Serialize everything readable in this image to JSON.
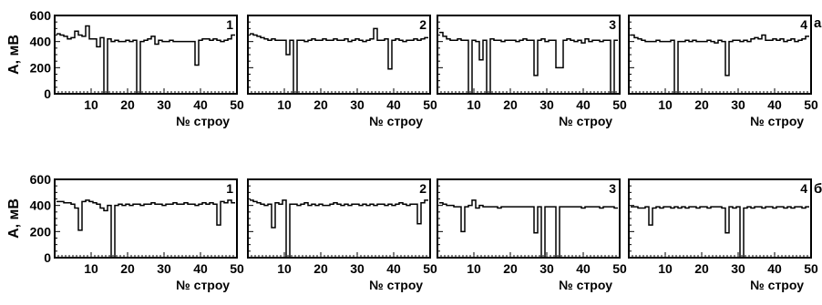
{
  "row_labels": [
    "а",
    "б"
  ],
  "chart_data": [
    {
      "type": "line",
      "panel": "1",
      "row": "а",
      "xlabel": "№ строу",
      "ylabel": "А, мВ",
      "xlim": [
        0,
        50
      ],
      "ylim": [
        0,
        600
      ],
      "x": [
        1,
        2,
        3,
        4,
        5,
        6,
        7,
        8,
        9,
        10,
        11,
        12,
        13,
        14,
        15,
        16,
        17,
        18,
        19,
        20,
        21,
        22,
        23,
        24,
        25,
        26,
        27,
        28,
        29,
        30,
        31,
        32,
        33,
        34,
        35,
        36,
        37,
        38,
        39,
        40,
        41,
        42,
        43,
        44,
        45,
        46,
        47,
        48,
        49
      ],
      "y": [
        460,
        450,
        440,
        420,
        430,
        480,
        450,
        440,
        520,
        420,
        420,
        360,
        430,
        0,
        420,
        400,
        410,
        400,
        400,
        410,
        400,
        410,
        0,
        400,
        410,
        420,
        440,
        380,
        410,
        400,
        400,
        410,
        400,
        400,
        400,
        400,
        400,
        400,
        220,
        410,
        420,
        420,
        410,
        420,
        410,
        400,
        410,
        420,
        450
      ]
    },
    {
      "type": "line",
      "panel": "2",
      "row": "а",
      "xlabel": "№ строу",
      "ylabel": "",
      "xlim": [
        0,
        50
      ],
      "ylim": [
        0,
        600
      ],
      "x": [
        1,
        2,
        3,
        4,
        5,
        6,
        7,
        8,
        9,
        10,
        11,
        12,
        13,
        14,
        15,
        16,
        17,
        18,
        19,
        20,
        21,
        22,
        23,
        24,
        25,
        26,
        27,
        28,
        29,
        30,
        31,
        32,
        33,
        34,
        35,
        36,
        37,
        38,
        39,
        40,
        41,
        42,
        43,
        44,
        45,
        46,
        47,
        48,
        49
      ],
      "y": [
        460,
        450,
        440,
        430,
        420,
        410,
        420,
        410,
        410,
        410,
        300,
        410,
        0,
        410,
        410,
        400,
        410,
        420,
        410,
        410,
        420,
        410,
        410,
        420,
        410,
        410,
        420,
        400,
        410,
        420,
        410,
        400,
        410,
        420,
        500,
        410,
        410,
        420,
        190,
        410,
        420,
        410,
        400,
        410,
        410,
        420,
        410,
        420,
        430
      ]
    },
    {
      "type": "line",
      "panel": "3",
      "row": "а",
      "xlabel": "№ строу",
      "ylabel": "",
      "xlim": [
        0,
        50
      ],
      "ylim": [
        0,
        600
      ],
      "x": [
        1,
        2,
        3,
        4,
        5,
        6,
        7,
        8,
        9,
        10,
        11,
        12,
        13,
        14,
        15,
        16,
        17,
        18,
        19,
        20,
        21,
        22,
        23,
        24,
        25,
        26,
        27,
        28,
        29,
        30,
        31,
        32,
        33,
        34,
        35,
        36,
        37,
        38,
        39,
        40,
        41,
        42,
        43,
        44,
        45,
        46,
        47,
        48,
        49
      ],
      "y": [
        470,
        440,
        420,
        410,
        410,
        420,
        410,
        410,
        0,
        410,
        400,
        260,
        410,
        0,
        420,
        410,
        410,
        400,
        410,
        410,
        410,
        400,
        410,
        420,
        410,
        410,
        140,
        410,
        420,
        400,
        410,
        410,
        200,
        200,
        410,
        420,
        410,
        400,
        410,
        390,
        420,
        400,
        410,
        410,
        400,
        410,
        410,
        0,
        410
      ]
    },
    {
      "type": "line",
      "panel": "4",
      "row": "а",
      "xlabel": "№ строу",
      "ylabel": "",
      "xlim": [
        0,
        50
      ],
      "ylim": [
        0,
        600
      ],
      "x": [
        1,
        2,
        3,
        4,
        5,
        6,
        7,
        8,
        9,
        10,
        11,
        12,
        13,
        14,
        15,
        16,
        17,
        18,
        19,
        20,
        21,
        22,
        23,
        24,
        25,
        26,
        27,
        28,
        29,
        30,
        31,
        32,
        33,
        34,
        35,
        36,
        37,
        38,
        39,
        40,
        41,
        42,
        43,
        44,
        45,
        46,
        47,
        48,
        49
      ],
      "y": [
        450,
        430,
        420,
        410,
        400,
        400,
        400,
        410,
        400,
        400,
        400,
        410,
        0,
        400,
        400,
        410,
        400,
        410,
        400,
        400,
        400,
        410,
        400,
        390,
        410,
        400,
        140,
        400,
        410,
        410,
        400,
        410,
        400,
        420,
        430,
        420,
        450,
        410,
        410,
        420,
        410,
        420,
        400,
        410,
        420,
        400,
        410,
        420,
        440
      ]
    },
    {
      "type": "line",
      "panel": "1",
      "row": "б",
      "xlabel": "№ строу",
      "ylabel": "А, мВ",
      "xlim": [
        0,
        50
      ],
      "ylim": [
        0,
        600
      ],
      "x": [
        1,
        2,
        3,
        4,
        5,
        6,
        7,
        8,
        9,
        10,
        11,
        12,
        13,
        14,
        15,
        16,
        17,
        18,
        19,
        20,
        21,
        22,
        23,
        24,
        25,
        26,
        27,
        28,
        29,
        30,
        31,
        32,
        33,
        34,
        35,
        36,
        37,
        38,
        39,
        40,
        41,
        42,
        43,
        44,
        45,
        46,
        47,
        48,
        49
      ],
      "y": [
        430,
        430,
        420,
        420,
        410,
        380,
        210,
        430,
        440,
        430,
        420,
        410,
        380,
        360,
        400,
        0,
        400,
        410,
        400,
        410,
        400,
        410,
        410,
        400,
        410,
        410,
        420,
        410,
        410,
        400,
        410,
        410,
        420,
        410,
        410,
        420,
        410,
        410,
        400,
        410,
        420,
        410,
        420,
        410,
        250,
        430,
        420,
        440,
        420
      ]
    },
    {
      "type": "line",
      "panel": "2",
      "row": "б",
      "xlabel": "№ строу",
      "ylabel": "",
      "xlim": [
        0,
        50
      ],
      "ylim": [
        0,
        600
      ],
      "x": [
        1,
        2,
        3,
        4,
        5,
        6,
        7,
        8,
        9,
        10,
        11,
        12,
        13,
        14,
        15,
        16,
        17,
        18,
        19,
        20,
        21,
        22,
        23,
        24,
        25,
        26,
        27,
        28,
        29,
        30,
        31,
        32,
        33,
        34,
        35,
        36,
        37,
        38,
        39,
        40,
        41,
        42,
        43,
        44,
        45,
        46,
        47,
        48,
        49
      ],
      "y": [
        440,
        430,
        420,
        410,
        400,
        410,
        230,
        420,
        410,
        440,
        0,
        410,
        410,
        400,
        410,
        420,
        400,
        410,
        400,
        410,
        400,
        400,
        410,
        420,
        410,
        400,
        410,
        400,
        410,
        410,
        400,
        410,
        400,
        410,
        400,
        410,
        410,
        400,
        410,
        400,
        410,
        420,
        410,
        400,
        410,
        410,
        260,
        420,
        440
      ]
    },
    {
      "type": "line",
      "panel": "3",
      "row": "б",
      "xlabel": "№ строу",
      "ylabel": "",
      "xlim": [
        0,
        50
      ],
      "ylim": [
        0,
        600
      ],
      "x": [
        1,
        2,
        3,
        4,
        5,
        6,
        7,
        8,
        9,
        10,
        11,
        12,
        13,
        14,
        15,
        16,
        17,
        18,
        19,
        20,
        21,
        22,
        23,
        24,
        25,
        26,
        27,
        28,
        29,
        30,
        31,
        32,
        33,
        34,
        35,
        36,
        37,
        38,
        39,
        40,
        41,
        42,
        43,
        44,
        45,
        46,
        47,
        48,
        49
      ],
      "y": [
        420,
        410,
        400,
        400,
        390,
        390,
        200,
        390,
        400,
        440,
        380,
        400,
        390,
        390,
        390,
        390,
        380,
        390,
        390,
        390,
        390,
        390,
        390,
        390,
        390,
        390,
        190,
        390,
        0,
        390,
        390,
        390,
        0,
        390,
        390,
        390,
        390,
        390,
        390,
        380,
        390,
        390,
        390,
        390,
        380,
        390,
        390,
        390,
        380
      ]
    },
    {
      "type": "line",
      "panel": "4",
      "row": "б",
      "xlabel": "№ строу",
      "ylabel": "",
      "xlim": [
        0,
        50
      ],
      "ylim": [
        0,
        600
      ],
      "x": [
        1,
        2,
        3,
        4,
        5,
        6,
        7,
        8,
        9,
        10,
        11,
        12,
        13,
        14,
        15,
        16,
        17,
        18,
        19,
        20,
        21,
        22,
        23,
        24,
        25,
        26,
        27,
        28,
        29,
        30,
        31,
        32,
        33,
        34,
        35,
        36,
        37,
        38,
        39,
        40,
        41,
        42,
        43,
        44,
        45,
        46,
        47,
        48,
        49
      ],
      "y": [
        390,
        390,
        380,
        380,
        390,
        250,
        380,
        390,
        380,
        390,
        390,
        380,
        390,
        380,
        390,
        380,
        390,
        390,
        380,
        390,
        390,
        380,
        390,
        390,
        390,
        380,
        190,
        390,
        380,
        390,
        0,
        380,
        390,
        380,
        390,
        390,
        380,
        390,
        390,
        380,
        390,
        390,
        380,
        390,
        380,
        390,
        390,
        380,
        390
      ]
    }
  ]
}
